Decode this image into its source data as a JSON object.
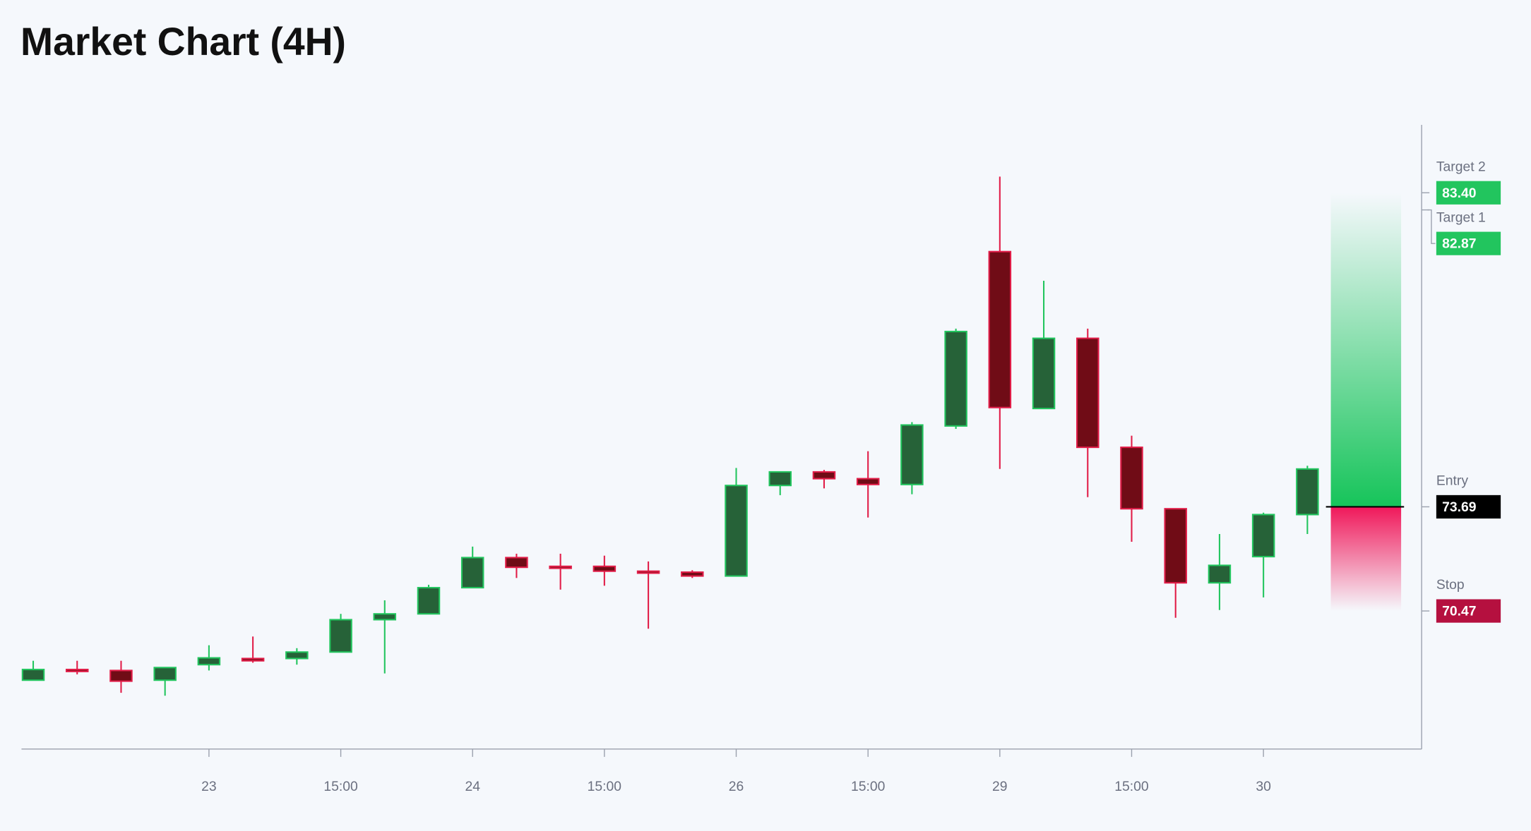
{
  "chart_data": {
    "type": "candlestick",
    "title": "Market Chart (4H)",
    "categories": [
      null,
      null,
      null,
      null,
      "23",
      null,
      null,
      "15:00",
      null,
      null,
      "24",
      null,
      null,
      "15:00",
      null,
      null,
      "26",
      null,
      null,
      "15:00",
      null,
      null,
      "29",
      null,
      null,
      "15:00",
      null,
      null,
      "30",
      null
    ],
    "open": [
      68.33,
      68.66,
      68.63,
      68.33,
      68.81,
      69.0,
      69.0,
      69.2,
      70.2,
      70.38,
      71.19,
      72.12,
      71.85,
      71.85,
      71.7,
      71.67,
      71.55,
      74.35,
      74.77,
      74.56,
      74.38,
      76.19,
      81.58,
      76.73,
      78.9,
      75.53,
      73.63,
      71.34,
      72.15,
      73.45
    ],
    "high": [
      68.93,
      68.93,
      68.93,
      68.72,
      69.41,
      69.68,
      69.32,
      70.38,
      70.8,
      71.28,
      72.46,
      72.24,
      72.24,
      72.18,
      72.0,
      71.73,
      74.89,
      74.77,
      74.83,
      75.41,
      76.31,
      79.2,
      83.9,
      80.68,
      79.2,
      75.89,
      73.63,
      72.85,
      73.51,
      74.96
    ],
    "low": [
      68.33,
      68.51,
      67.94,
      67.85,
      68.63,
      68.87,
      68.81,
      69.2,
      68.54,
      70.38,
      71.19,
      71.49,
      71.13,
      71.25,
      69.92,
      71.49,
      71.55,
      74.05,
      74.26,
      73.36,
      74.08,
      76.1,
      74.86,
      76.73,
      73.99,
      72.61,
      70.26,
      70.5,
      70.89,
      72.85
    ],
    "close": [
      68.66,
      68.6,
      68.3,
      68.72,
      69.02,
      68.93,
      69.2,
      70.2,
      70.38,
      71.19,
      72.12,
      71.82,
      71.79,
      71.7,
      71.64,
      71.55,
      74.35,
      74.77,
      74.56,
      74.38,
      76.22,
      79.11,
      76.76,
      78.9,
      75.53,
      73.63,
      71.34,
      71.88,
      73.45,
      74.86
    ],
    "up_color": "#22c55e",
    "up_fill": "#266238",
    "down_color": "#e11d48",
    "down_fill": "#700c16",
    "ylim": [
      66.2,
      85.5
    ],
    "levels": [
      {
        "name": "Target 2",
        "value": 83.4,
        "label": "83.40",
        "color": "#22c55e"
      },
      {
        "name": "Target 1",
        "value": 82.87,
        "label": "82.87",
        "color": "#22c55e"
      },
      {
        "name": "Entry",
        "value": 73.69,
        "label": "73.69",
        "color": "#000000"
      },
      {
        "name": "Stop",
        "value": 70.47,
        "label": "70.47",
        "color": "#b5103f"
      }
    ]
  }
}
